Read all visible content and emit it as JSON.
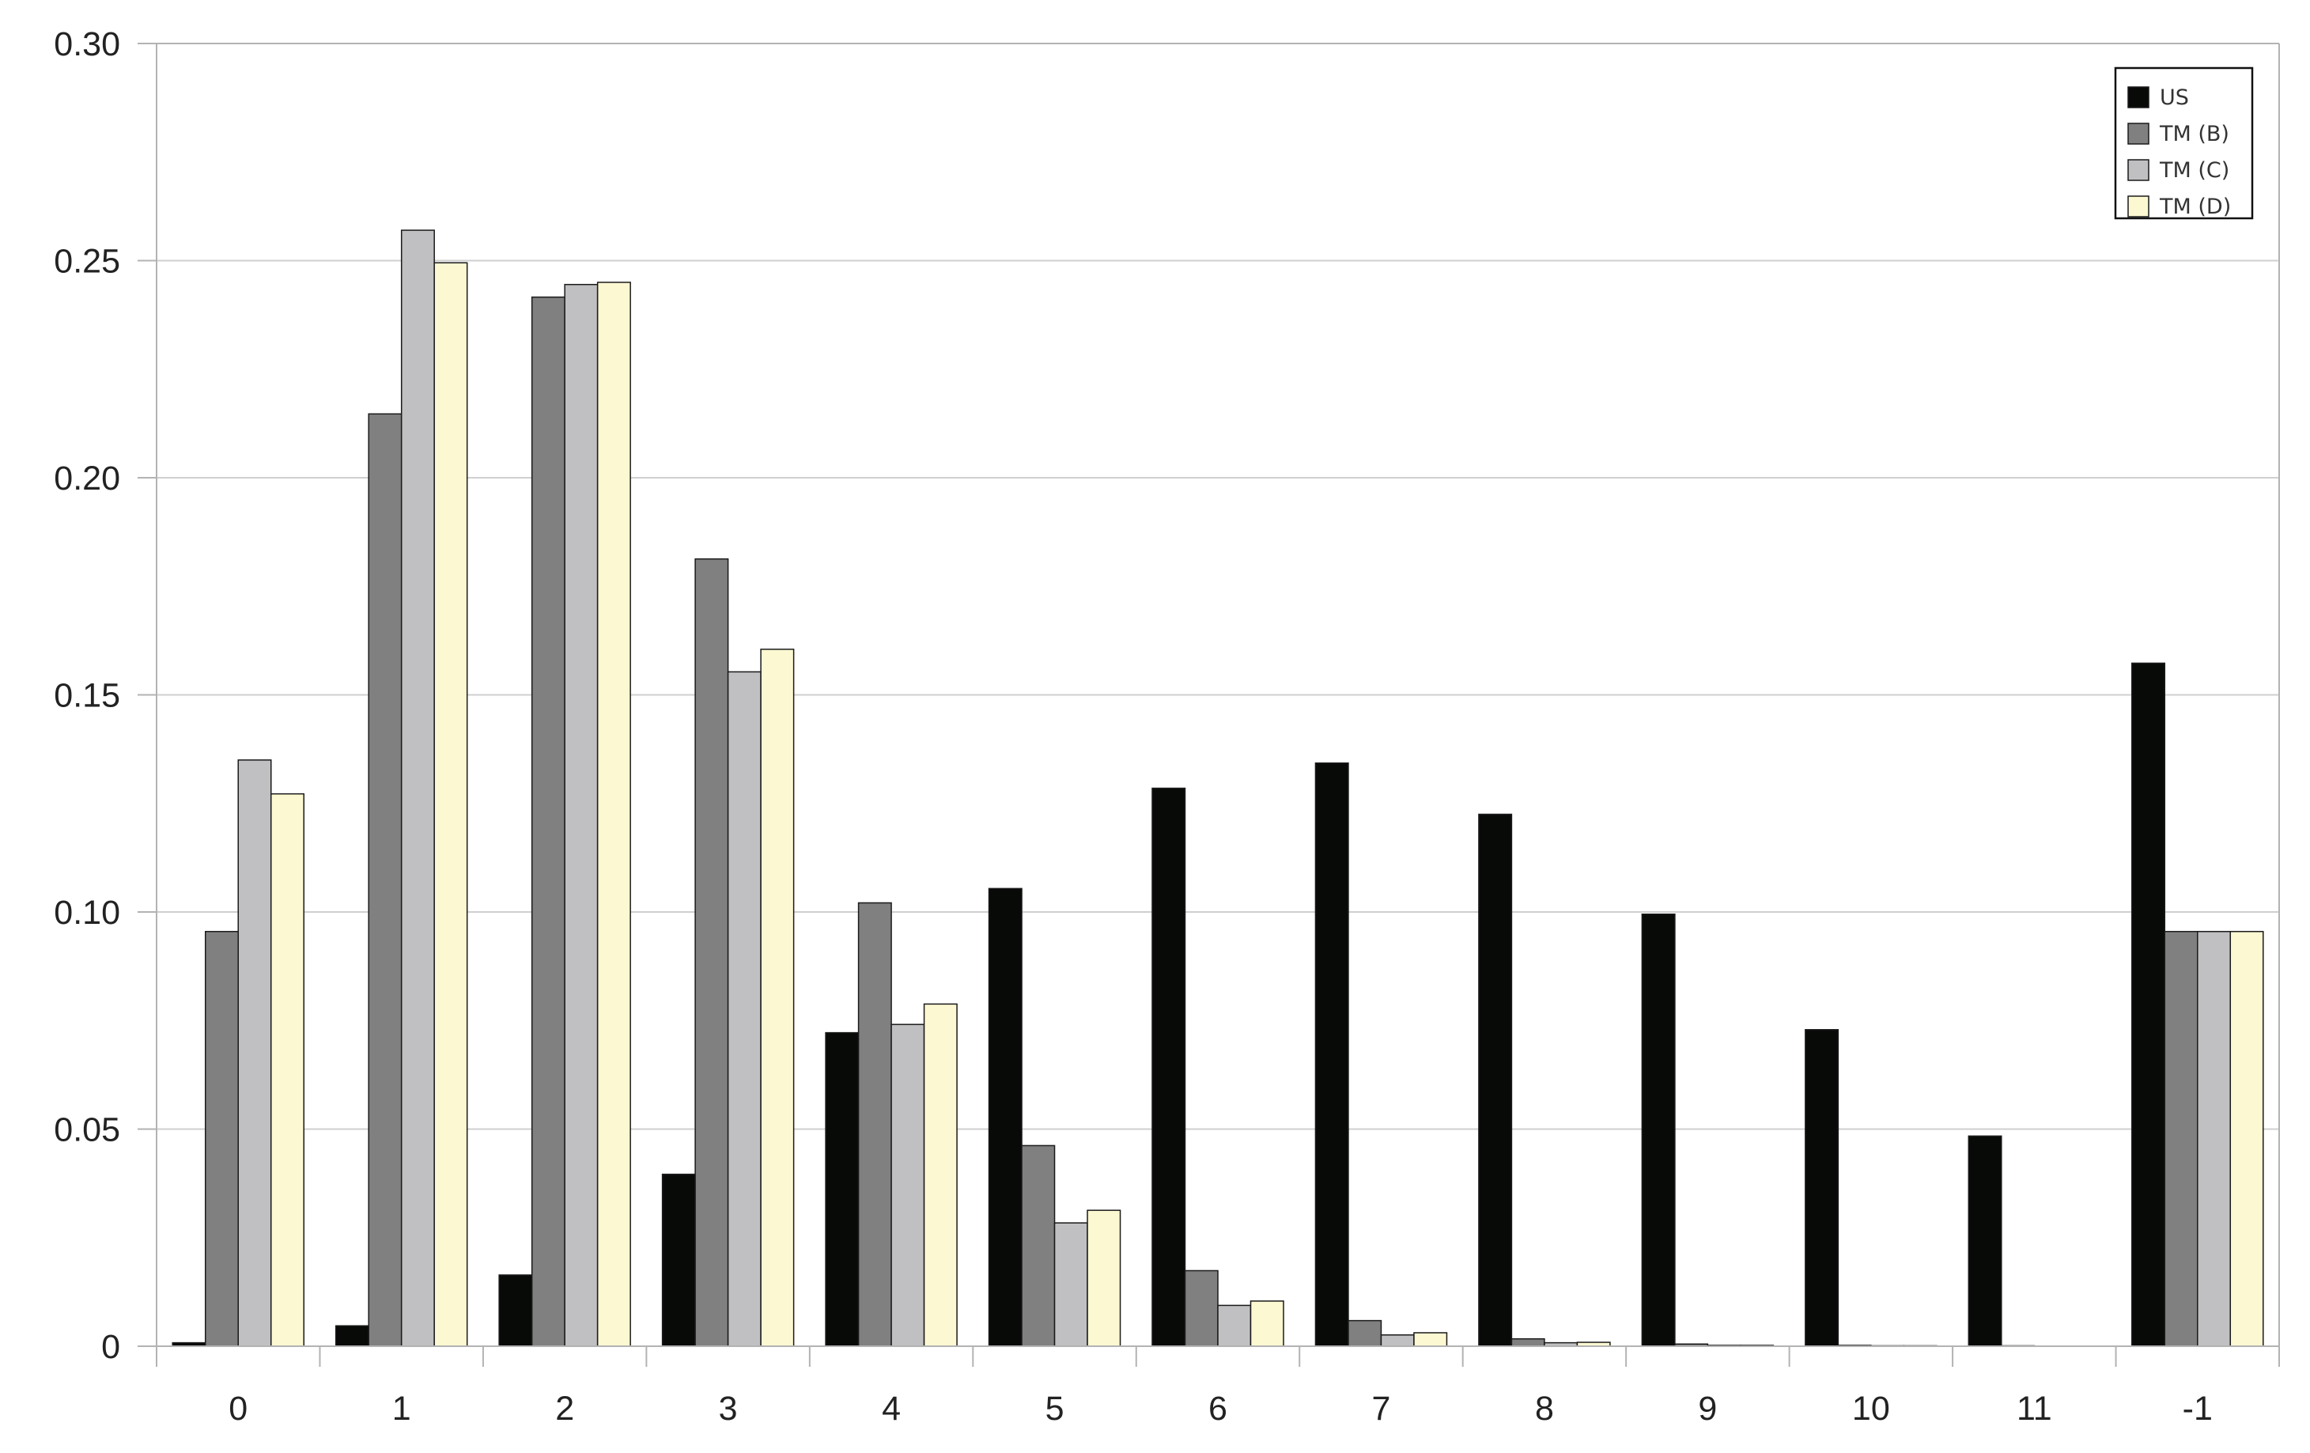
{
  "chart_data": {
    "type": "bar",
    "categories": [
      "0",
      "1",
      "2",
      "3",
      "4",
      "5",
      "6",
      "7",
      "8",
      "9",
      "10",
      "11",
      "-1"
    ],
    "series": [
      {
        "name": "US",
        "color": "#080a08",
        "values": [
          0.0008,
          0.0047,
          0.0164,
          0.0396,
          0.0722,
          0.1054,
          0.1285,
          0.1343,
          0.1225,
          0.0995,
          0.0729,
          0.0484,
          0.1573
        ]
      },
      {
        "name": "TM (B)",
        "color": "#808080",
        "values": [
          0.0955,
          0.2147,
          0.2416,
          0.1813,
          0.1021,
          0.0462,
          0.0174,
          0.0059,
          0.0017,
          0.0005,
          0.0002,
          0.0001,
          0.0955
        ]
      },
      {
        "name": "TM (C)",
        "color": "#c0bfc1",
        "values": [
          0.135,
          0.257,
          0.2445,
          0.1553,
          0.0741,
          0.0284,
          0.0094,
          0.0026,
          0.0008,
          0.0002,
          0.0001,
          0.0,
          0.0955
        ]
      },
      {
        "name": "TM (D)",
        "color": "#fcf8d2",
        "values": [
          0.1272,
          0.2495,
          0.245,
          0.1605,
          0.0788,
          0.0313,
          0.0104,
          0.0031,
          0.0009,
          0.0002,
          0.0001,
          0.0,
          0.0955
        ]
      }
    ],
    "y_ticks": [
      "0",
      "0.05",
      "0.10",
      "0.15",
      "0.20",
      "0.25",
      "0.30"
    ],
    "ylim": [
      0,
      0.3
    ],
    "grid": true,
    "legend_position": "top-right",
    "title": "",
    "xlabel": "",
    "ylabel": ""
  }
}
